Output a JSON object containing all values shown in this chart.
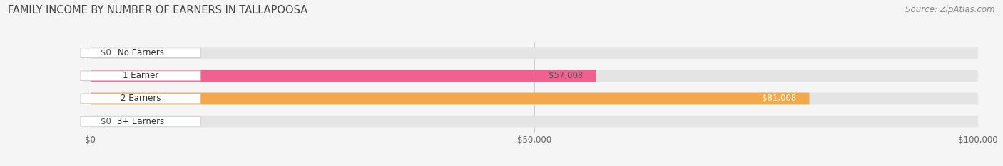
{
  "title": "FAMILY INCOME BY NUMBER OF EARNERS IN TALLAPOOSA",
  "source": "Source: ZipAtlas.com",
  "categories": [
    "No Earners",
    "1 Earner",
    "2 Earners",
    "3+ Earners"
  ],
  "values": [
    0,
    57008,
    81008,
    0
  ],
  "bar_colors": [
    "#a0a8d8",
    "#f06090",
    "#f5a84a",
    "#f0a0a0"
  ],
  "value_label_colors": [
    "#555555",
    "#555555",
    "#ffffff",
    "#555555"
  ],
  "xlim": [
    0,
    100000
  ],
  "xticks": [
    0,
    50000,
    100000
  ],
  "xtick_labels": [
    "$0",
    "$50,000",
    "$100,000"
  ],
  "background_color": "#f5f5f5",
  "bar_bg_color": "#e4e4e4",
  "title_fontsize": 10.5,
  "source_fontsize": 8.5,
  "label_fontsize": 8.5,
  "value_fontsize": 8.5
}
